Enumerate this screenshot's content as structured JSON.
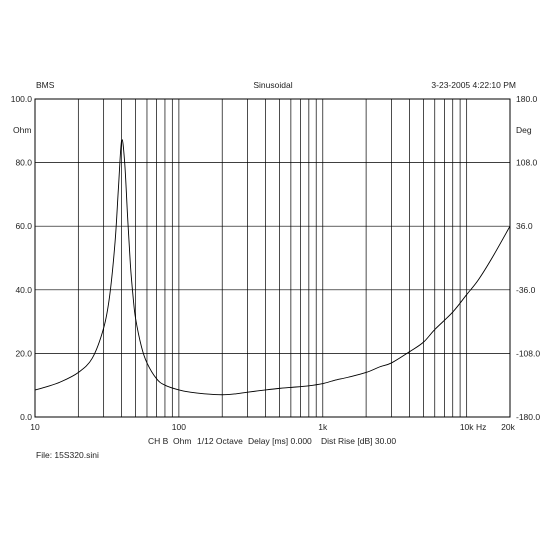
{
  "header": {
    "left": "BMS",
    "center": "Sinusoidal",
    "right": "3-23-2005 4:22:10 PM"
  },
  "footer": {
    "channel": "CH B",
    "unit": "Ohm",
    "smoothing": "1/12 Octave",
    "delay": "Delay [ms] 0.000",
    "dist_rise": "Dist Rise [dB] 30.00",
    "file": "File: 15S320.sini"
  },
  "chart_data": {
    "type": "line",
    "xscale": "log",
    "xlim": [
      10,
      20000
    ],
    "ylim": [
      0,
      100
    ],
    "y2lim": [
      -180,
      180
    ],
    "grid": true,
    "ylabel": "Ohm",
    "y2label": "Deg",
    "xunit": "Hz",
    "x_ticks": [
      {
        "value": 10,
        "label": "10"
      },
      {
        "value": 100,
        "label": "100"
      },
      {
        "value": 1000,
        "label": "1k"
      },
      {
        "value": 10000,
        "label": "10k"
      },
      {
        "value": 20000,
        "label": "20k"
      }
    ],
    "y_ticks": [
      "0.0",
      "20.0",
      "40.0",
      "60.0",
      "80.0",
      "100.0"
    ],
    "y2_ticks": [
      "-180.0",
      "-108.0",
      "-36.0",
      "36.0",
      "108.0",
      "180.0"
    ],
    "series": [
      {
        "x": [
          10,
          12,
          15,
          20,
          25,
          30,
          33,
          36,
          38,
          40,
          42,
          44,
          46,
          48,
          50,
          55,
          60,
          70,
          80,
          100,
          120,
          150,
          200,
          250,
          300,
          400,
          500,
          600,
          800,
          1000,
          1200,
          1500,
          2000,
          2500,
          3000,
          4000,
          5000,
          6000,
          8000,
          10000,
          12000,
          15000,
          20000
        ],
        "y": [
          8.5,
          9.5,
          11,
          14,
          18.5,
          28,
          38,
          55,
          72,
          87,
          80,
          63,
          48,
          38,
          31,
          22,
          17,
          12,
          10,
          8.5,
          7.8,
          7.3,
          7,
          7.3,
          7.8,
          8.5,
          9,
          9.3,
          9.8,
          10.5,
          11.5,
          12.5,
          14,
          15.8,
          17,
          20.5,
          23.5,
          27.5,
          33,
          38.5,
          43,
          50,
          60
        ]
      }
    ]
  }
}
